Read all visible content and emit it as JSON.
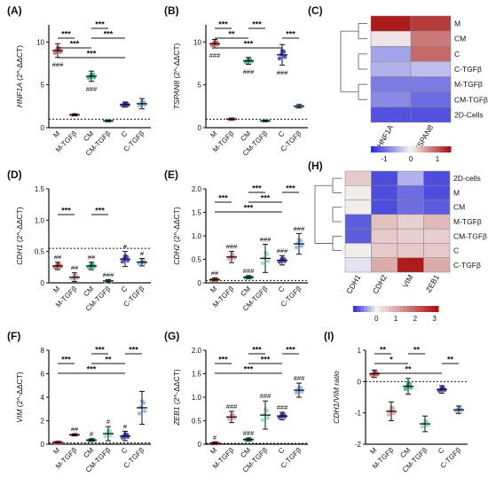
{
  "colors": {
    "M": "#e05050",
    "M-TGF": "#e8a0a0",
    "CM": "#28b888",
    "CM-TGF": "#90e0b8",
    "C": "#3a3ad0",
    "C-TGF": "#88b4e8",
    "heat_low": "#2a2ad8",
    "heat_mid": "#f4f4f4",
    "heat_high": "#a80c0c"
  },
  "groups": [
    "M",
    "M-TGFβ",
    "CM",
    "CM-TGFβ",
    "C",
    "C-TGFβ"
  ],
  "chart_data": [
    {
      "id": "A",
      "panel_label": "(A)",
      "type": "scatter",
      "ylabel": "HNF1A (2^-ΔΔCT)",
      "ylim": [
        0,
        12
      ],
      "yticks": [
        0,
        5,
        10
      ],
      "dotted_baseline": 1,
      "values": [
        9.0,
        1.5,
        6.0,
        0.8,
        2.7,
        2.8
      ],
      "err": [
        0.8,
        0.1,
        0.6,
        0.1,
        0.3,
        0.6
      ],
      "point_labels": [
        "###",
        "",
        "###",
        "",
        "",
        ""
      ],
      "comparisons": [
        {
          "from": "M",
          "to": "C",
          "label": "***"
        },
        {
          "from": "M",
          "to": "CM",
          "label": "***"
        },
        {
          "from": "M",
          "to": "M-TGFβ",
          "label": "***"
        },
        {
          "from": "CM",
          "to": "C",
          "label": "***"
        },
        {
          "from": "CM",
          "to": "CM-TGFβ",
          "label": "***"
        }
      ]
    },
    {
      "id": "B",
      "panel_label": "(B)",
      "type": "scatter",
      "ylabel": "TSPAN8 (2^-ΔΔCT)",
      "ylim": [
        0,
        12
      ],
      "yticks": [
        0,
        5,
        10
      ],
      "dotted_baseline": 1,
      "values": [
        9.8,
        1.0,
        7.8,
        0.8,
        8.5,
        2.5
      ],
      "err": [
        0.5,
        0.1,
        0.4,
        0.1,
        1.2,
        0.2
      ],
      "point_labels": [
        "###",
        "",
        "###",
        "",
        "###",
        ""
      ],
      "comparisons": [
        {
          "from": "M",
          "to": "C",
          "label": "***"
        },
        {
          "from": "M",
          "to": "CM",
          "label": "**"
        },
        {
          "from": "M",
          "to": "M-TGFβ",
          "label": "***"
        },
        {
          "from": "CM",
          "to": "CM-TGFβ",
          "label": "***"
        },
        {
          "from": "C",
          "to": "C-TGFβ",
          "label": "***"
        }
      ]
    },
    {
      "id": "C",
      "panel_label": "(C)",
      "type": "heatmap",
      "columns": [
        "HNF1A",
        "TSPAN8"
      ],
      "rows": [
        "M",
        "CM",
        "C",
        "C-TGFβ",
        "M-TGFβ",
        "CM-TGFβ",
        "2D-Cells"
      ],
      "values": [
        [
          1.4,
          1.2
        ],
        [
          0.1,
          0.8
        ],
        [
          -0.6,
          0.9
        ],
        [
          -0.5,
          -0.4
        ],
        [
          -0.9,
          -0.9
        ],
        [
          -0.8,
          -1.0
        ],
        [
          -1.2,
          -1.2
        ]
      ],
      "scale_range": [
        -1.5,
        1.5
      ],
      "colorbar_ticks": [
        "-1",
        "0",
        "1"
      ]
    },
    {
      "id": "D",
      "panel_label": "(D)",
      "type": "scatter",
      "ylabel": "CDH1 (2^-ΔΔCT)",
      "ylim": [
        0,
        1.5
      ],
      "yticks": [
        0,
        0.5,
        1.0,
        1.5
      ],
      "dotted_baseline": 0.55,
      "values": [
        0.27,
        0.09,
        0.27,
        0.03,
        0.38,
        0.33
      ],
      "err": [
        0.06,
        0.07,
        0.06,
        0.02,
        0.12,
        0.06
      ],
      "point_labels": [
        "##",
        "##",
        "##",
        "###",
        "#",
        "#"
      ],
      "comparisons": [
        {
          "from": "M",
          "to": "M-TGFβ",
          "label": "***"
        },
        {
          "from": "CM",
          "to": "CM-TGFβ",
          "label": "***"
        }
      ]
    },
    {
      "id": "E",
      "panel_label": "(E)",
      "type": "scatter",
      "ylabel": "CDH2 (2^-ΔΔCT)",
      "ylim": [
        0,
        2.0
      ],
      "yticks": [
        0,
        0.5,
        1.0,
        1.5,
        2.0
      ],
      "dotted_baseline": 0.05,
      "values": [
        0.07,
        0.55,
        0.12,
        0.52,
        0.48,
        0.83
      ],
      "err": [
        0.03,
        0.12,
        0.03,
        0.3,
        0.1,
        0.22
      ],
      "point_labels": [
        "##",
        "###",
        "###",
        "###",
        "###",
        "###"
      ],
      "comparisons": [
        {
          "from": "M",
          "to": "C",
          "label": "***"
        },
        {
          "from": "M",
          "to": "M-TGFβ",
          "label": "***"
        },
        {
          "from": "CM",
          "to": "C",
          "label": "***"
        },
        {
          "from": "CM",
          "to": "CM-TGFβ",
          "label": "***"
        },
        {
          "from": "C",
          "to": "C-TGFβ",
          "label": "***"
        }
      ]
    },
    {
      "id": "H",
      "panel_label": "(H)",
      "type": "heatmap",
      "columns": [
        "CDH1",
        "CDH2",
        "VIM",
        "ZEB1"
      ],
      "rows": [
        "2D-cells",
        "M",
        "CM",
        "M-TGFβ",
        "CM-TGFβ",
        "C",
        "C-TGFβ"
      ],
      "values": [
        [
          0.6,
          -1.0,
          -0.4,
          -1.0
        ],
        [
          0.1,
          -1.0,
          -0.8,
          -1.0
        ],
        [
          0.1,
          -1.0,
          -0.8,
          -0.9
        ],
        [
          -0.9,
          0.7,
          0.5,
          0.8
        ],
        [
          -0.9,
          0.6,
          0.5,
          0.5
        ],
        [
          0.1,
          0.6,
          0.6,
          0.6
        ],
        [
          -0.1,
          1.0,
          3.0,
          1.0
        ]
      ],
      "scale_range": [
        -1.2,
        3.2
      ],
      "colorbar_ticks": [
        "0",
        "1",
        "2",
        "3"
      ]
    },
    {
      "id": "F",
      "panel_label": "(F)",
      "type": "scatter",
      "ylabel": "VIM (2^-ΔΔCT)",
      "ylim": [
        0,
        8.0
      ],
      "yticks": [
        0,
        2.0,
        4.0,
        6.0,
        8.0
      ],
      "dotted_baseline": 0.1,
      "values": [
        0.15,
        0.8,
        0.35,
        0.9,
        0.7,
        3.1
      ],
      "err": [
        0.05,
        0.08,
        0.1,
        0.6,
        0.4,
        1.4
      ],
      "point_labels": [
        "",
        "##",
        "#",
        "#",
        "#",
        ""
      ],
      "comparisons": [
        {
          "from": "M",
          "to": "C",
          "label": "***"
        },
        {
          "from": "M",
          "to": "M-TGFβ",
          "label": "***"
        },
        {
          "from": "CM",
          "to": "C",
          "label": "**"
        },
        {
          "from": "CM",
          "to": "CM-TGFβ",
          "label": "***"
        },
        {
          "from": "C",
          "to": "C-TGFβ",
          "label": "***"
        }
      ]
    },
    {
      "id": "G",
      "panel_label": "(G)",
      "type": "scatter",
      "ylabel": "ZEB1 (2^-ΔΔCT)",
      "ylim": [
        0,
        2.0
      ],
      "yticks": [
        0,
        0.5,
        1.0,
        1.5,
        2.0
      ],
      "dotted_baseline": 0.02,
      "values": [
        0.02,
        0.58,
        0.1,
        0.62,
        0.6,
        1.15
      ],
      "err": [
        0.02,
        0.12,
        0.03,
        0.3,
        0.08,
        0.15
      ],
      "point_labels": [
        "#",
        "###",
        "###",
        "###",
        "###",
        "###"
      ],
      "comparisons": [
        {
          "from": "M",
          "to": "C",
          "label": "***"
        },
        {
          "from": "M",
          "to": "M-TGFβ",
          "label": "***"
        },
        {
          "from": "CM",
          "to": "C",
          "label": "***"
        },
        {
          "from": "CM",
          "to": "CM-TGFβ",
          "label": "***"
        },
        {
          "from": "C",
          "to": "C-TGFβ",
          "label": "***"
        }
      ]
    },
    {
      "id": "I",
      "panel_label": "(I)",
      "type": "scatter",
      "ylabel": "CDH1/VIM ratio",
      "ylim": [
        -2,
        1
      ],
      "yticks": [
        -2,
        -1,
        0,
        1
      ],
      "dotted_baseline": 0,
      "values": [
        0.25,
        -0.95,
        -0.15,
        -1.35,
        -0.25,
        -0.9
      ],
      "err": [
        0.12,
        0.3,
        0.25,
        0.25,
        0.12,
        0.12
      ],
      "point_labels": [
        "",
        "",
        "",
        "",
        "",
        ""
      ],
      "comparisons": [
        {
          "from": "M",
          "to": "C",
          "label": "**"
        },
        {
          "from": "M",
          "to": "CM",
          "label": "*"
        },
        {
          "from": "M",
          "to": "M-TGFβ",
          "label": "**"
        },
        {
          "from": "CM",
          "to": "CM-TGFβ",
          "label": "**"
        },
        {
          "from": "C",
          "to": "C-TGFβ",
          "label": "**"
        }
      ]
    }
  ]
}
